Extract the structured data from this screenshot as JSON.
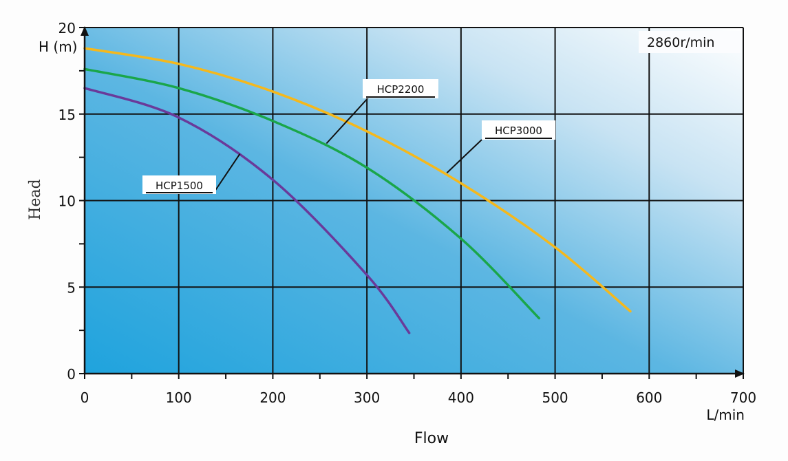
{
  "chart_data": {
    "type": "line",
    "title": "",
    "xlabel": "Flow",
    "x_unit": "L/min",
    "ylabel": "Head",
    "y_unit": "H (m)",
    "xlim": [
      0,
      700
    ],
    "ylim": [
      0,
      20
    ],
    "x_ticks": [
      "0",
      "100",
      "200",
      "300",
      "400",
      "500",
      "600",
      "700"
    ],
    "y_ticks": [
      "0",
      "5",
      "10",
      "15",
      "20"
    ],
    "grid": true,
    "annotation": "2860r/min",
    "colors": {
      "HCP3000": "#f5b81c",
      "HCP2200": "#1aa64a",
      "HCP1500": "#6a3a9a",
      "bg_dark": "#1fa3dd",
      "bg_light": "#ffffff"
    },
    "series": [
      {
        "name": "HCP3000",
        "x": [
          0,
          100,
          200,
          300,
          400,
          500,
          580
        ],
        "y": [
          18.8,
          17.9,
          16.3,
          14.0,
          11.0,
          7.3,
          3.6
        ]
      },
      {
        "name": "HCP2200",
        "x": [
          0,
          100,
          200,
          300,
          400,
          483
        ],
        "y": [
          17.6,
          16.5,
          14.6,
          11.9,
          7.8,
          3.2
        ]
      },
      {
        "name": "HCP1500",
        "x": [
          0,
          100,
          200,
          300,
          345
        ],
        "y": [
          16.5,
          14.8,
          11.2,
          5.7,
          2.35
        ]
      }
    ],
    "labels": [
      {
        "text": "HCP3000",
        "series": "HCP3000",
        "anchor_x": 385,
        "anchor_y": 11.6
      },
      {
        "text": "HCP2200",
        "series": "HCP2200",
        "anchor_x": 257,
        "anchor_y": 13.3
      },
      {
        "text": "HCP1500",
        "series": "HCP1500",
        "anchor_x": 165,
        "anchor_y": 12.7
      }
    ]
  }
}
